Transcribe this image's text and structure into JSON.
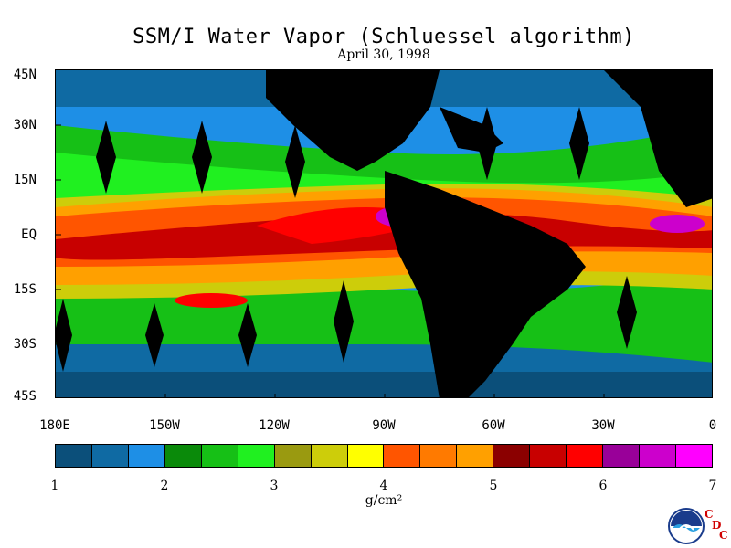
{
  "title": "SSM/I Water Vapor (Schluessel algorithm)",
  "subtitle": "April 30, 1998",
  "lat_labels": [
    "45N",
    "30N",
    "15N",
    "EQ",
    "15S",
    "30S",
    "45S"
  ],
  "lon_labels": [
    "180E",
    "150W",
    "120W",
    "90W",
    "60W",
    "30W",
    "0"
  ],
  "colorbar": {
    "colors": [
      "#0b4f7a",
      "#0f6aa3",
      "#1e8fe6",
      "#0a8a0a",
      "#16c016",
      "#20f020",
      "#9a9a10",
      "#cdcd0a",
      "#ffff00",
      "#ff5500",
      "#ff7a00",
      "#ffa000",
      "#8b0000",
      "#c80000",
      "#ff0000",
      "#990099",
      "#cc00cc",
      "#ff00ff"
    ],
    "ticks": [
      "1",
      "2",
      "3",
      "4",
      "5",
      "6",
      "7"
    ],
    "unit": "g/cm²"
  },
  "logo": {
    "text": "NOAA",
    "icon": "noaa-logo-icon"
  },
  "cdc": {
    "c1": "C",
    "d": "D",
    "c2": "C"
  }
}
